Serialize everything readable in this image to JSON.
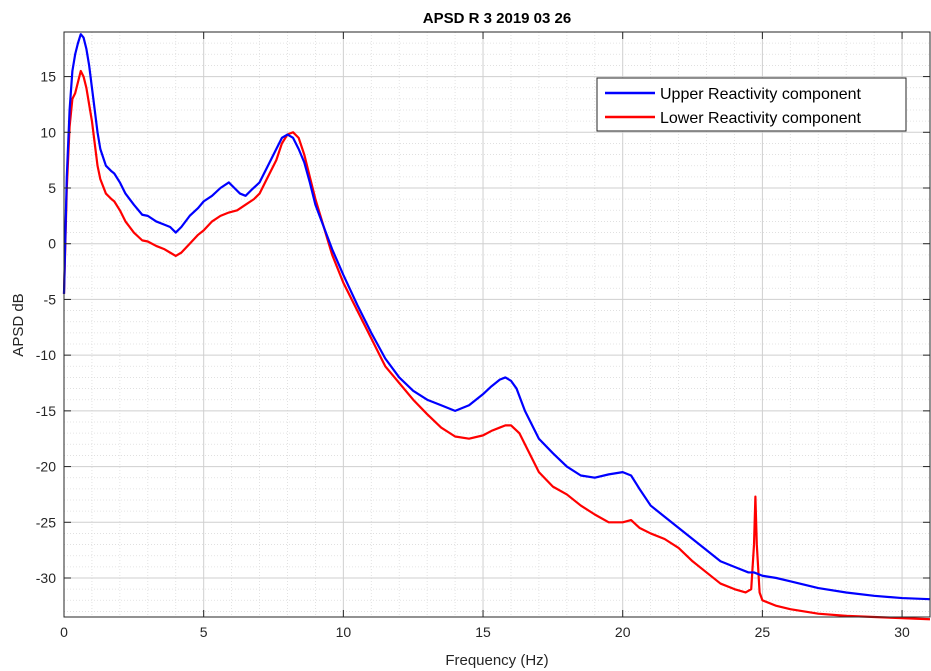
{
  "chart_data": {
    "type": "line",
    "title": "APSD R 3   2019 03 26",
    "xlabel": "Frequency (Hz)",
    "ylabel": "APSD dB",
    "xlim": [
      0,
      31
    ],
    "ylim": [
      -33.5,
      19
    ],
    "xticks": [
      0,
      5,
      10,
      15,
      20,
      25,
      30
    ],
    "yticks": [
      -30,
      -25,
      -20,
      -15,
      -10,
      -5,
      0,
      5,
      10,
      15
    ],
    "grid": true,
    "minor_grid": true,
    "legend_position": "top-right",
    "series": [
      {
        "name": "Upper Reactivity component",
        "color": "#0000ff",
        "x": [
          0,
          0.1,
          0.2,
          0.3,
          0.4,
          0.5,
          0.6,
          0.7,
          0.8,
          0.9,
          1.0,
          1.1,
          1.2,
          1.3,
          1.5,
          1.7,
          1.8,
          2.0,
          2.2,
          2.5,
          2.8,
          3.0,
          3.3,
          3.6,
          3.8,
          4.0,
          4.2,
          4.5,
          4.8,
          5.0,
          5.3,
          5.6,
          5.9,
          6.1,
          6.3,
          6.5,
          6.7,
          7.0,
          7.3,
          7.6,
          7.8,
          8.0,
          8.2,
          8.4,
          8.6,
          8.8,
          9.0,
          9.3,
          9.6,
          10.0,
          10.5,
          11.0,
          11.5,
          12.0,
          12.5,
          13.0,
          13.5,
          14.0,
          14.5,
          15.0,
          15.3,
          15.6,
          15.8,
          16.0,
          16.2,
          16.5,
          17.0,
          17.5,
          18.0,
          18.5,
          19.0,
          19.5,
          20.0,
          20.3,
          20.6,
          21.0,
          21.5,
          22.0,
          22.5,
          23.0,
          23.5,
          24.0,
          24.5,
          24.7,
          25.0,
          25.5,
          26.0,
          26.5,
          27.0,
          28.0,
          29.0,
          30.0,
          31.0
        ],
        "y": [
          -4.5,
          6,
          12,
          15.5,
          17,
          18,
          18.8,
          18.5,
          17.5,
          16,
          14,
          12,
          10,
          8.5,
          7,
          6.5,
          6.3,
          5.5,
          4.5,
          3.5,
          2.6,
          2.5,
          2,
          1.7,
          1.5,
          1,
          1.5,
          2.5,
          3.2,
          3.8,
          4.3,
          5,
          5.5,
          5,
          4.5,
          4.3,
          4.8,
          5.5,
          7,
          8.5,
          9.5,
          9.8,
          9.5,
          8.5,
          7.3,
          5.5,
          3.5,
          1.5,
          -0.5,
          -2.8,
          -5.5,
          -8,
          -10.3,
          -12,
          -13.2,
          -14,
          -14.5,
          -15,
          -14.5,
          -13.5,
          -12.8,
          -12.2,
          -12,
          -12.3,
          -13,
          -15,
          -17.5,
          -18.8,
          -20,
          -20.8,
          -21,
          -20.7,
          -20.5,
          -20.8,
          -22,
          -23.5,
          -24.5,
          -25.5,
          -26.5,
          -27.5,
          -28.5,
          -29,
          -29.5,
          -29.5,
          -29.8,
          -30,
          -30.3,
          -30.6,
          -30.9,
          -31.3,
          -31.6,
          -31.8,
          -31.9
        ]
      },
      {
        "name": "Lower Reactivity component",
        "color": "#ff0000",
        "x": [
          0,
          0.1,
          0.2,
          0.3,
          0.4,
          0.5,
          0.6,
          0.7,
          0.8,
          0.9,
          1.0,
          1.1,
          1.2,
          1.3,
          1.5,
          1.7,
          1.8,
          2.0,
          2.2,
          2.5,
          2.8,
          3.0,
          3.3,
          3.6,
          3.8,
          4.0,
          4.2,
          4.5,
          4.8,
          5.0,
          5.3,
          5.6,
          5.9,
          6.2,
          6.5,
          6.8,
          7.0,
          7.2,
          7.4,
          7.6,
          7.8,
          8.0,
          8.2,
          8.4,
          8.6,
          8.8,
          9.0,
          9.3,
          9.6,
          10.0,
          10.5,
          11.0,
          11.5,
          12.0,
          12.5,
          13.0,
          13.5,
          14.0,
          14.5,
          15.0,
          15.3,
          15.6,
          15.8,
          16.0,
          16.3,
          16.6,
          17.0,
          17.5,
          18.0,
          18.5,
          19.0,
          19.5,
          20.0,
          20.3,
          20.6,
          21.0,
          21.5,
          22.0,
          22.5,
          23.0,
          23.5,
          24.0,
          24.4,
          24.6,
          24.7,
          24.75,
          24.8,
          24.9,
          25.0,
          25.5,
          26.0,
          26.5,
          27.0,
          28.0,
          29.0,
          30.0,
          31.0
        ],
        "y": [
          -4.5,
          5,
          10.5,
          13,
          13.5,
          14.5,
          15.5,
          15,
          14,
          12.5,
          11,
          9,
          7,
          5.8,
          4.5,
          4,
          3.8,
          3,
          2,
          1,
          0.3,
          0.2,
          -0.2,
          -0.5,
          -0.8,
          -1.1,
          -0.8,
          0,
          0.8,
          1.2,
          2,
          2.5,
          2.8,
          3,
          3.5,
          4,
          4.5,
          5.5,
          6.5,
          7.5,
          9,
          9.8,
          10,
          9.5,
          8,
          6,
          4,
          1.5,
          -1,
          -3.5,
          -6,
          -8.5,
          -11,
          -12.5,
          -14,
          -15.3,
          -16.5,
          -17.3,
          -17.5,
          -17.2,
          -16.8,
          -16.5,
          -16.3,
          -16.3,
          -17,
          -18.5,
          -20.5,
          -21.8,
          -22.5,
          -23.5,
          -24.3,
          -25,
          -25,
          -24.8,
          -25.5,
          -26,
          -26.5,
          -27.3,
          -28.5,
          -29.5,
          -30.5,
          -31,
          -31.3,
          -31,
          -27,
          -22.7,
          -27,
          -31.3,
          -32,
          -32.5,
          -32.8,
          -33,
          -33.2,
          -33.4,
          -33.5,
          -33.6,
          -33.7
        ]
      }
    ]
  }
}
